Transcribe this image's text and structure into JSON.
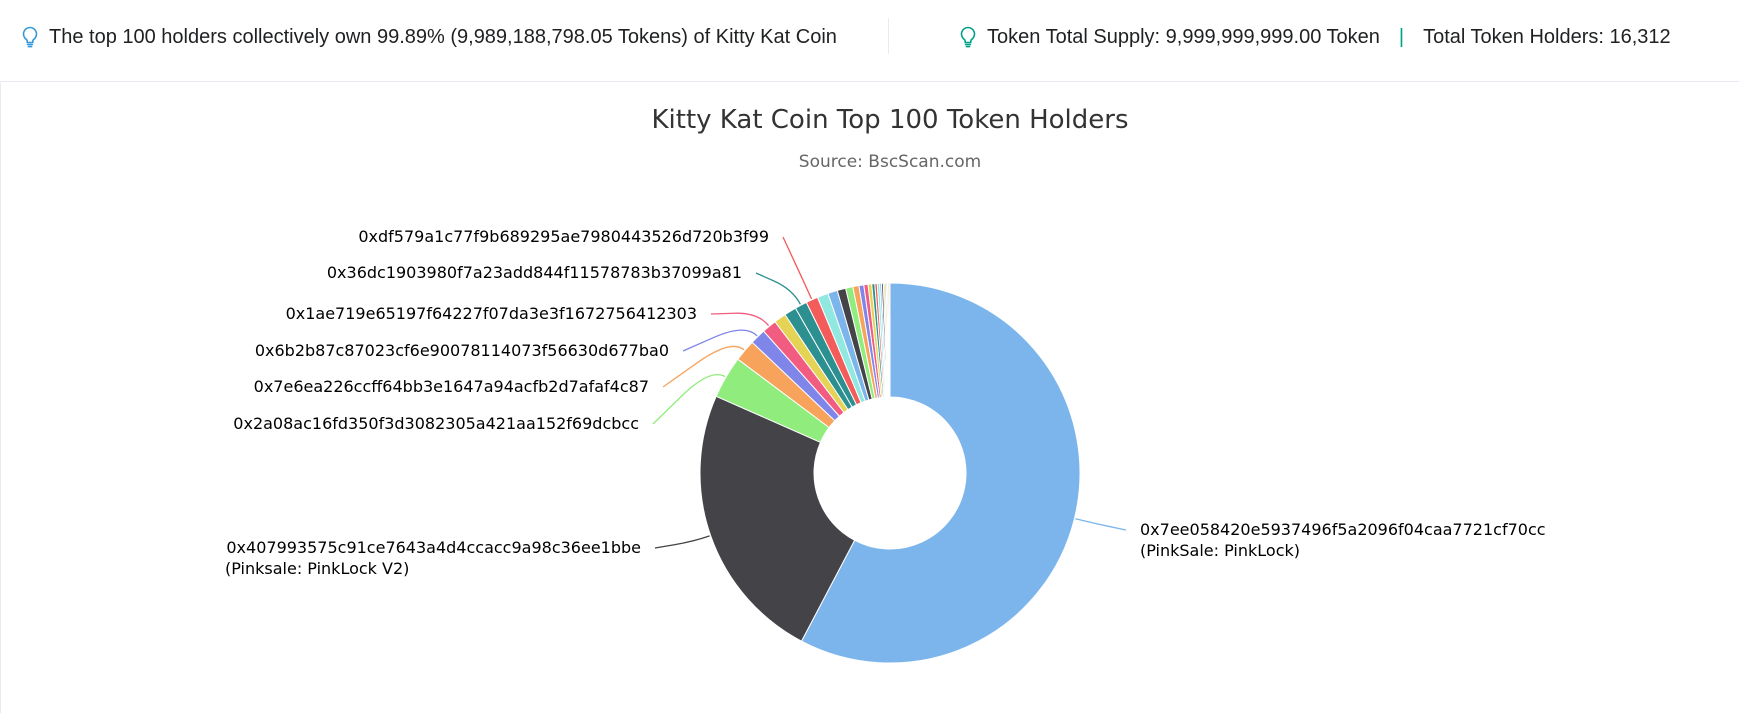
{
  "summary": {
    "top_holders_text": "The top 100 holders collectively own 99.89% (9,989,188,798.05 Tokens) of Kitty Kat Coin",
    "total_supply_text": "Token Total Supply: 9,999,999,999.00 Token",
    "separator": "|",
    "total_holders_text": "Total Token Holders: 16,312"
  },
  "colors": {
    "icon_accent": "#00a186",
    "icon_blue": "#3498db"
  },
  "chart_data": {
    "type": "pie",
    "title": "Kitty Kat Coin Top 100 Token Holders",
    "subtitle": "Source: BscScan.com",
    "donut": true,
    "labeled_slices": [
      {
        "label": "0x7ee058420e5937496f5a2096f04caa7721cf70cc",
        "sublabel": "(PinkSale: PinkLock)",
        "value": 56.0,
        "color": "#7cb5ec"
      },
      {
        "label": "0x407993575c91ce7643a4d4ccacc9a98c36ee1bbe",
        "sublabel": "(Pinksale: PinkLock V2)",
        "value": 23.2,
        "color": "#434348"
      },
      {
        "label": "0x2a08ac16fd350f3d3082305a421aa152f69dcbcc",
        "value": 3.5,
        "color": "#90ed7d"
      },
      {
        "label": "0x7e6ea226ccff64bb3e1647a94acfb2d7afaf4c87",
        "value": 1.8,
        "color": "#f7a35c"
      },
      {
        "label": "0x6b2b87c87023cf6e90078114073f56630d677ba0",
        "value": 1.3,
        "color": "#8085e9"
      },
      {
        "label": "0x1ae719e65197f64227f07da3e3f1672756412303",
        "value": 1.2,
        "color": "#f15c80"
      }
    ],
    "unlabeled_slices": [
      {
        "value": 1.0,
        "color": "#e4d354"
      },
      {
        "value": 1.0,
        "color": "#2b908f"
      }
    ],
    "more_labeled_slices": [
      {
        "label": "0x36dc1903980f7a23add844f11578783b37099a81",
        "value": 1.0,
        "color": "#2b908f"
      },
      {
        "label": "0xdf579a1c77f9b689295ae7980443526d720b3f99",
        "value": 1.0,
        "color": "#f45b5b"
      }
    ],
    "tail_slices": [
      {
        "value": 0.9,
        "color": "#91e8e1"
      },
      {
        "value": 0.8,
        "color": "#7cb5ec"
      },
      {
        "value": 0.7,
        "color": "#434348"
      },
      {
        "value": 0.6,
        "color": "#90ed7d"
      },
      {
        "value": 0.5,
        "color": "#f7a35c"
      },
      {
        "value": 0.4,
        "color": "#8085e9"
      },
      {
        "value": 0.35,
        "color": "#f15c80"
      },
      {
        "value": 0.3,
        "color": "#e4d354"
      },
      {
        "value": 0.25,
        "color": "#2b908f"
      },
      {
        "value": 0.2,
        "color": "#f45b5b"
      },
      {
        "value": 0.2,
        "color": "#91e8e1"
      },
      {
        "value": 0.15,
        "color": "#7cb5ec"
      },
      {
        "value": 0.15,
        "color": "#434348"
      },
      {
        "value": 0.12,
        "color": "#90ed7d"
      },
      {
        "value": 0.12,
        "color": "#f7a35c"
      },
      {
        "value": 0.1,
        "color": "#8085e9"
      },
      {
        "value": 0.1,
        "color": "#f15c80"
      },
      {
        "value": 0.1,
        "color": "#e4d354"
      }
    ]
  }
}
